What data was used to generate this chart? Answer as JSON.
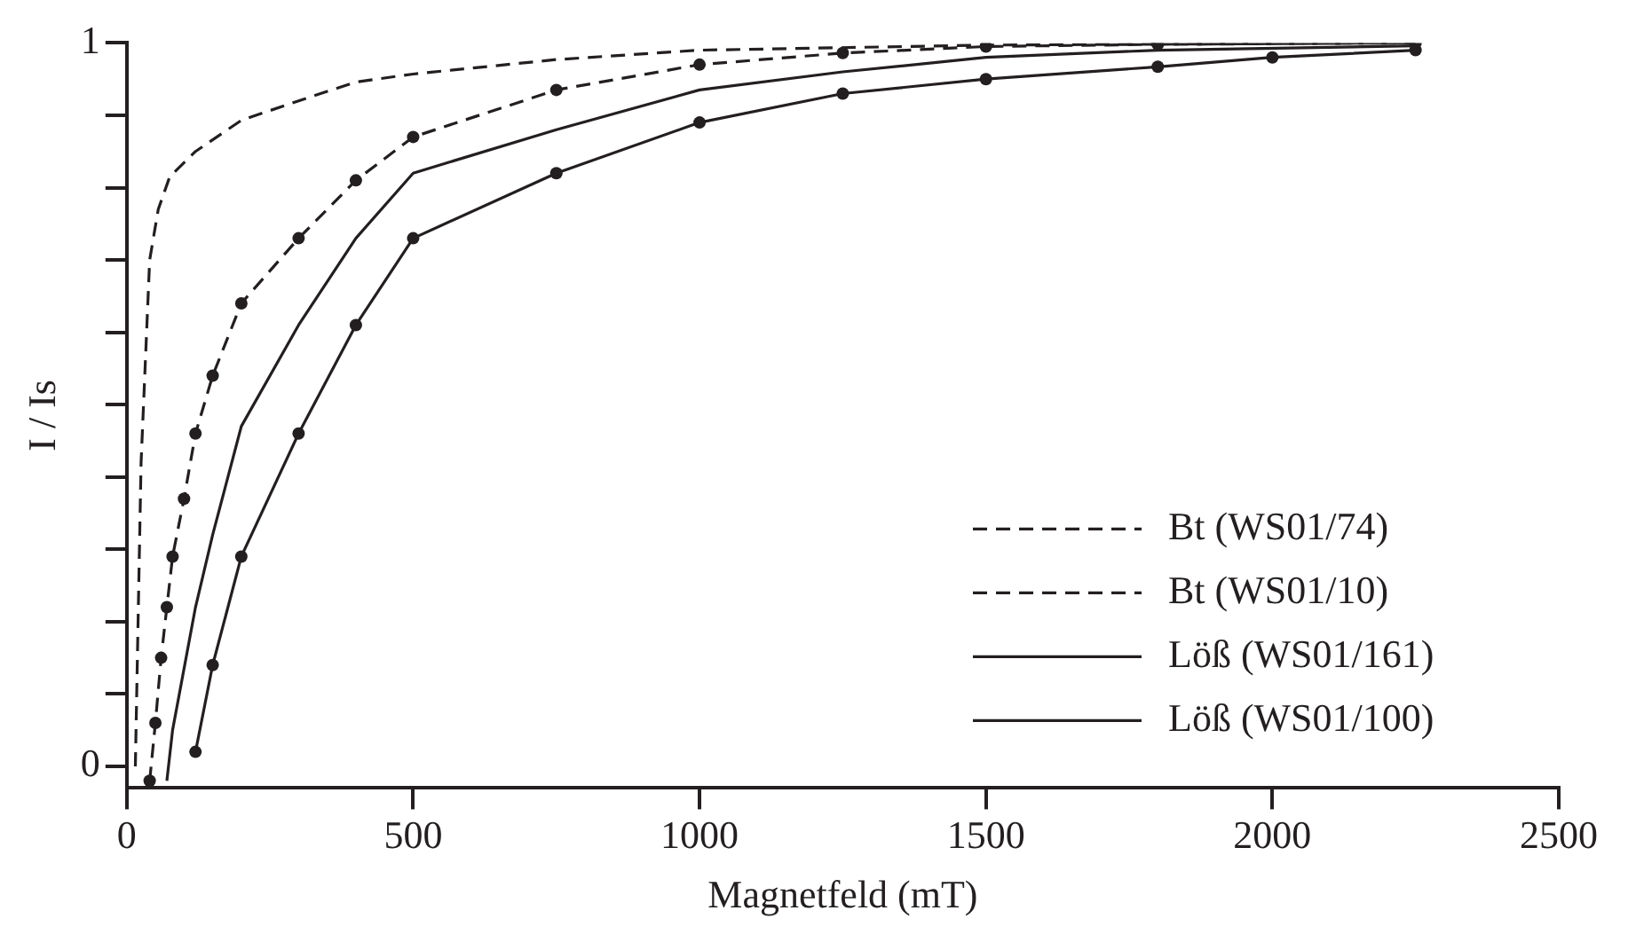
{
  "chart_data": {
    "type": "line",
    "xlabel": "Magnetfeld (mT)",
    "ylabel": "I / Is",
    "xlim": [
      0,
      2500
    ],
    "xticks": [
      0,
      500,
      1000,
      1500,
      2000,
      2500
    ],
    "ylim": [
      -0.03,
      1
    ],
    "yticks": [
      0,
      {
        "value": 0.1,
        "label": null
      },
      {
        "value": 0.2,
        "label": null
      },
      {
        "value": 0.3,
        "label": null
      },
      {
        "value": 0.4,
        "label": null
      },
      {
        "value": 0.5,
        "label": null
      },
      {
        "value": 0.6,
        "label": null
      },
      {
        "value": 0.7,
        "label": null
      },
      {
        "value": 0.8,
        "label": null
      },
      {
        "value": 0.9,
        "label": null
      },
      1
    ],
    "grid": false,
    "legend": "bottom right",
    "series": [
      {
        "name": "Bt (WS01/74)",
        "color": "#231f20",
        "line_style": "dashed",
        "marker": "none",
        "x": [
          15,
          25,
          40,
          55,
          75,
          120,
          200,
          300,
          400,
          500,
          750,
          1000,
          1500,
          2250
        ],
        "values": [
          0,
          0.42,
          0.7,
          0.77,
          0.815,
          0.85,
          0.893,
          0.92,
          0.946,
          0.957,
          0.977,
          0.99,
          0.997,
          1.0
        ]
      },
      {
        "name": "Bt (WS01/10)",
        "color": "#231f20",
        "line_style": "dashed",
        "marker": "circle",
        "x": [
          40,
          50,
          60,
          70,
          80,
          100,
          120,
          150,
          200,
          300,
          400,
          500,
          750,
          1000,
          1250,
          1500,
          1800,
          2250
        ],
        "values": [
          -0.02,
          0.06,
          0.15,
          0.22,
          0.29,
          0.37,
          0.46,
          0.54,
          0.64,
          0.73,
          0.81,
          0.87,
          0.935,
          0.97,
          0.986,
          0.995,
          0.998,
          1.0
        ]
      },
      {
        "name": "Löß (WS01/161)",
        "color": "#231f20",
        "line_style": "solid",
        "marker": "none",
        "x": [
          70,
          80,
          120,
          150,
          200,
          300,
          400,
          500,
          750,
          1000,
          1250,
          1500,
          1800,
          2250
        ],
        "values": [
          -0.02,
          0.05,
          0.22,
          0.32,
          0.47,
          0.61,
          0.73,
          0.82,
          0.88,
          0.935,
          0.96,
          0.98,
          0.99,
          0.996
        ]
      },
      {
        "name": "Löß (WS01/100)",
        "color": "#231f20",
        "line_style": "solid",
        "marker": "circle",
        "x": [
          120,
          150,
          200,
          300,
          400,
          500,
          750,
          1000,
          1250,
          1500,
          1800,
          2000,
          2250
        ],
        "values": [
          0.02,
          0.14,
          0.29,
          0.46,
          0.61,
          0.73,
          0.82,
          0.89,
          0.93,
          0.95,
          0.967,
          0.98,
          0.99
        ]
      }
    ]
  }
}
